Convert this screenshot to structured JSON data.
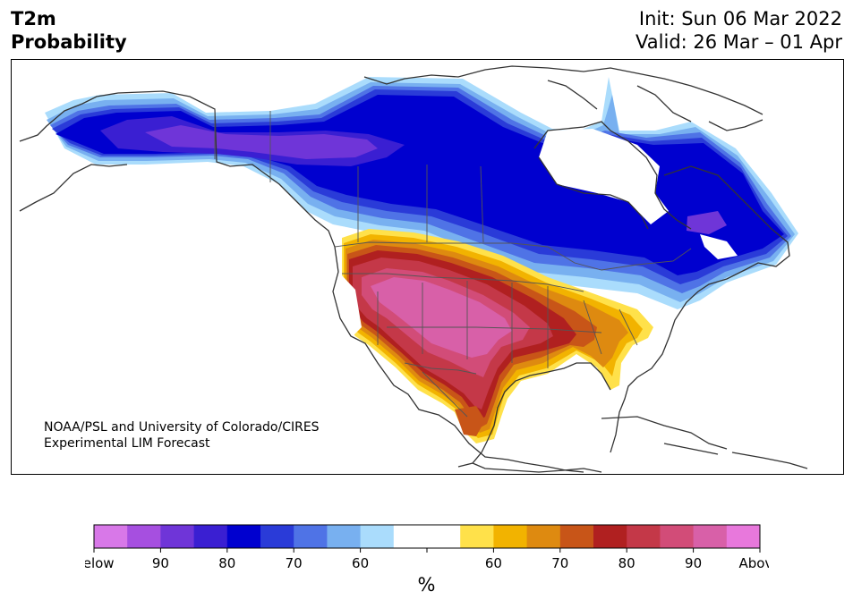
{
  "title": {
    "line1": "T2m",
    "line2": "Probability",
    "init": "Init: Sun 06 Mar 2022",
    "valid": "Valid: 26 Mar – 01 Apr"
  },
  "credit": {
    "line1": "NOAA/PSL and University of Colorado/CIRES",
    "line2": "Experimental LIM Forecast"
  },
  "colorbar": {
    "unit": "%",
    "colors": [
      "#d878e8",
      "#a64fe0",
      "#6f35d8",
      "#3a1fd2",
      "#0000cf",
      "#2a3bd8",
      "#4f73e6",
      "#78b0f0",
      "#aadcfc",
      "#ffffff",
      "#ffffff",
      "#ffe14a",
      "#f2b300",
      "#de8a10",
      "#c85518",
      "#b02020",
      "#c43848",
      "#d24c78",
      "#d860a8",
      "#e878dc"
    ],
    "tick_labels": [
      "Below",
      "90",
      "80",
      "70",
      "60",
      "",
      "60",
      "70",
      "80",
      "90",
      "Above"
    ]
  },
  "colors": {
    "land_fill": "#ffffff",
    "coastline": "#333333",
    "below_90": "#6f35d8",
    "below_80": "#0000cf",
    "below_70": "#2a3bd8",
    "below_60": "#4f73e6",
    "below_55": "#78b0f0",
    "below_50": "#aadcfc",
    "above_55": "#ffe14a",
    "above_60": "#f2b300",
    "above_65": "#de8a10",
    "above_70": "#c85518",
    "above_75": "#b02020",
    "above_80": "#c43848",
    "above_85": "#d24c78",
    "above_90": "#d860a8"
  }
}
